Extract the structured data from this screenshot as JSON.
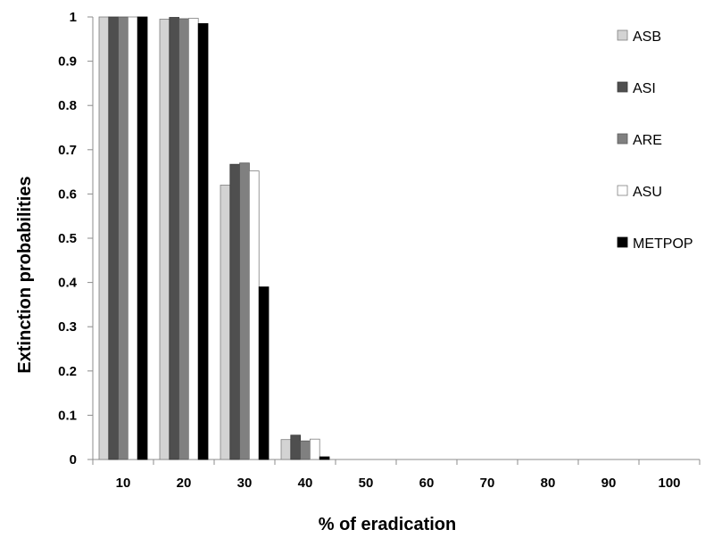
{
  "chart_data": {
    "type": "bar",
    "title": "",
    "xlabel": "% of eradication",
    "ylabel": "Extinction probabilities",
    "categories": [
      "10",
      "20",
      "30",
      "40",
      "50",
      "60",
      "70",
      "80",
      "90",
      "100"
    ],
    "ylim": [
      0,
      1
    ],
    "yticks": [
      "0",
      "0.1",
      "0.2",
      "0.3",
      "0.4",
      "0.5",
      "0.6",
      "0.7",
      "0.8",
      "0.9",
      "1"
    ],
    "grid": false,
    "legend_position": "right",
    "series": [
      {
        "name": "ASB",
        "color": "#d3d3d3",
        "stroke": "#7f7f7f",
        "values": [
          1.0,
          0.995,
          0.62,
          0.045,
          0,
          0,
          0,
          0,
          0,
          0
        ]
      },
      {
        "name": "ASI",
        "color": "#4f4f4f",
        "stroke": "#3a3a3a",
        "values": [
          1.0,
          0.999,
          0.667,
          0.055,
          0,
          0,
          0,
          0,
          0,
          0
        ]
      },
      {
        "name": "ARE",
        "color": "#808080",
        "stroke": "#5a5a5a",
        "values": [
          1.0,
          0.996,
          0.67,
          0.042,
          0,
          0,
          0,
          0,
          0,
          0
        ]
      },
      {
        "name": "ASU",
        "color": "#ffffff",
        "stroke": "#7f7f7f",
        "values": [
          1.0,
          0.997,
          0.652,
          0.046,
          0,
          0,
          0,
          0,
          0,
          0
        ]
      },
      {
        "name": "METPOP",
        "color": "#000000",
        "stroke": "#000000",
        "values": [
          1.0,
          0.985,
          0.39,
          0.006,
          0,
          0,
          0,
          0,
          0,
          0
        ]
      }
    ]
  }
}
